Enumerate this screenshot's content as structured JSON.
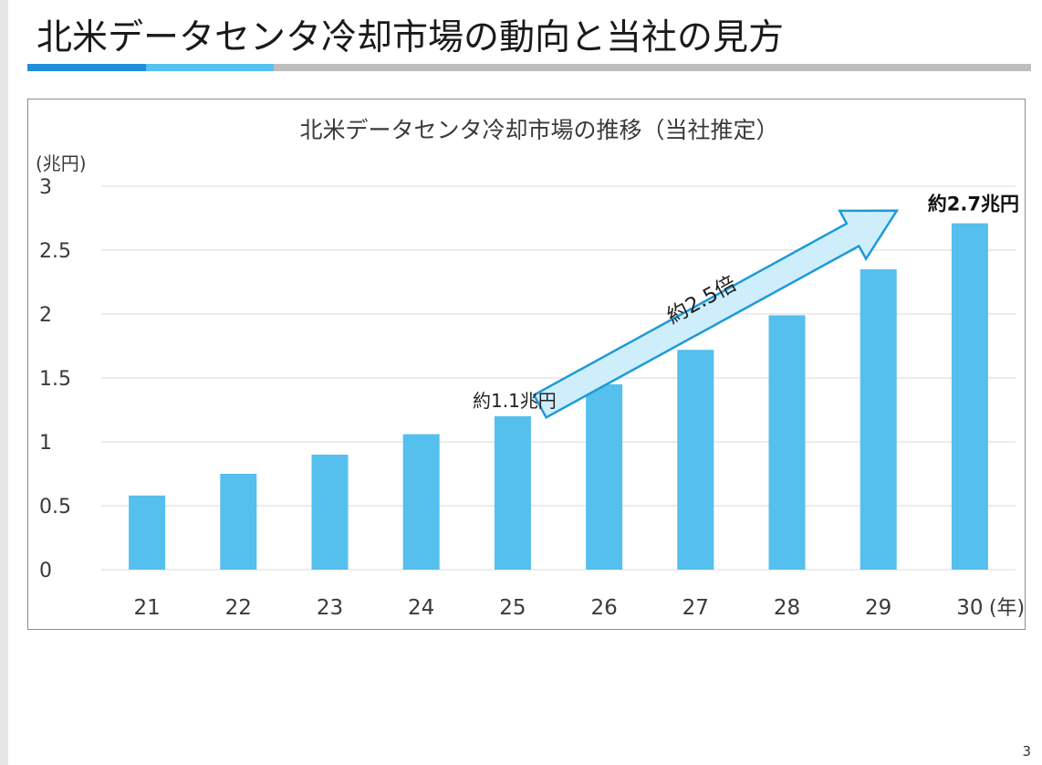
{
  "slide": {
    "title": "北米データセンタ冷却市場の動向と当社の見方",
    "page_number": "3"
  },
  "colors": {
    "bar": "#55bfee",
    "accent_dark": "#1f8fd8",
    "accent_light": "#55c1ee",
    "rule_gray": "#bdbdbd",
    "arrow_fill": "#cfeefc",
    "arrow_stroke": "#1f9ad6"
  },
  "chart_data": {
    "type": "bar",
    "title": "北米データセンタ冷却市場の推移（当社推定）",
    "ylabel": "(兆円)",
    "xlabel": "(年)",
    "categories": [
      "21",
      "22",
      "23",
      "24",
      "25",
      "26",
      "27",
      "28",
      "29",
      "30"
    ],
    "values": [
      0.58,
      0.75,
      0.9,
      1.06,
      1.2,
      1.45,
      1.72,
      1.99,
      2.35,
      2.71
    ],
    "ylim": [
      0,
      3
    ],
    "yticks": [
      "0",
      "0.5",
      "1",
      "1.5",
      "2",
      "2.5",
      "3"
    ],
    "grid": true,
    "annotations": {
      "start_label": "約1.1兆円",
      "end_label": "約2.7兆円",
      "growth_label": "約2.5倍"
    }
  }
}
